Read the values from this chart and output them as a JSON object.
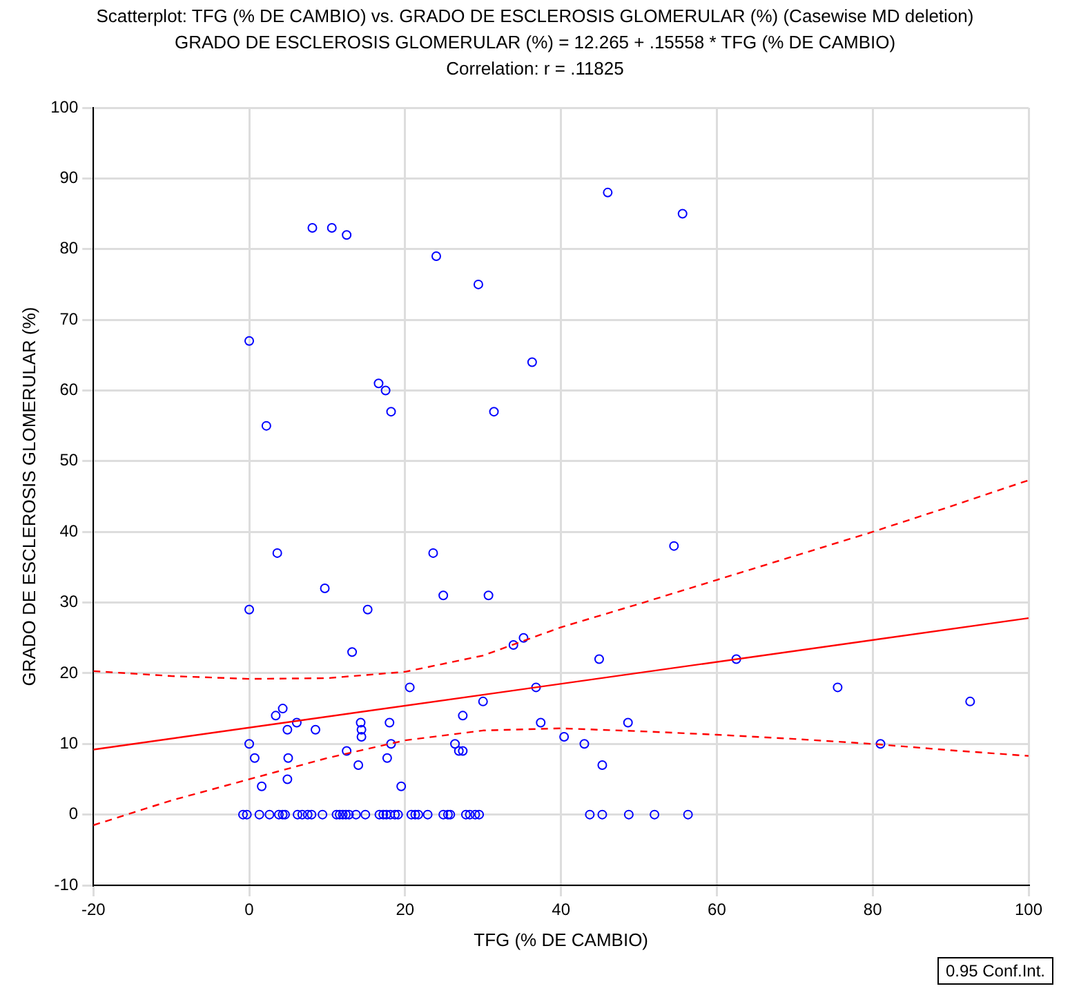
{
  "chart_data": {
    "type": "scatter",
    "title": "Scatterplot: TFG (% DE CAMBIO) vs. GRADO DE ESCLEROSIS GLOMERULAR (%) (Casewise MD deletion)",
    "subtitle": "GRADO DE ESCLEROSIS GLOMERULAR (%) = 12.265 + .15558 * TFG (% DE CAMBIO)",
    "annotations": [
      "Correlation: r = .11825",
      "0.95 Conf.Int."
    ],
    "xlabel": "TFG (% DE CAMBIO)",
    "ylabel": "GRADO DE ESCLEROSIS GLOMERULAR (%)",
    "xlim": [
      -20,
      100
    ],
    "ylim": [
      -10,
      100
    ],
    "xticks": [
      -20,
      0,
      20,
      40,
      60,
      80,
      100
    ],
    "yticks": [
      -10,
      0,
      10,
      20,
      30,
      40,
      50,
      60,
      70,
      80,
      90,
      100
    ],
    "grid": true,
    "legend": false,
    "series": [
      {
        "type": "scatter",
        "marker": "circle",
        "color": "#0000ff",
        "x": [
          0,
          8.1,
          10.6,
          12.5,
          24,
          29.4,
          46,
          55.6,
          36.3,
          31.4,
          16.6,
          17.5,
          18.2,
          2.2,
          3.6,
          9.7,
          0,
          15.2,
          13.2,
          23.6,
          24.9,
          30.7,
          54.5,
          33.9,
          35.2,
          44.9,
          62.5,
          36.8,
          37.4,
          75.5,
          92.5,
          81,
          20.6,
          30,
          0,
          0.7,
          1.6,
          3.4,
          4.3,
          4.9,
          6.1,
          5,
          4.9,
          8.5,
          12.5,
          14,
          14.3,
          14.4,
          14.4,
          18,
          18.2,
          17.7,
          19.5,
          27.4,
          26.4,
          26.9,
          27.4,
          40.4,
          43,
          45.3,
          48.6,
          -0.8,
          -0.3,
          1.3,
          2.6,
          3.8,
          4.3,
          4.6,
          6.2,
          6.8,
          7.5,
          8,
          9.4,
          11.2,
          11.6,
          12,
          12.4,
          12.8,
          13.7,
          14.9,
          16.7,
          17.2,
          17.6,
          18.1,
          18.7,
          19.1,
          20.8,
          21.3,
          21.7,
          22.9,
          24.9,
          25.5,
          25.8,
          27.8,
          28.3,
          29,
          29.5,
          43.7,
          45.3,
          48.7,
          52,
          56.3
        ],
        "values": [
          67,
          83,
          83,
          82,
          79,
          75,
          88,
          85,
          64,
          57,
          61,
          60,
          57,
          55,
          37,
          32,
          29,
          29,
          23,
          37,
          31,
          31,
          38,
          24,
          25,
          22,
          22,
          18,
          13,
          18,
          16,
          10,
          18,
          16,
          10,
          8,
          4,
          14,
          15,
          12,
          13,
          8,
          5,
          12,
          9,
          7,
          13,
          12,
          11,
          13,
          10,
          8,
          4,
          14,
          10,
          9,
          9,
          11,
          10,
          7,
          13,
          0,
          0,
          0,
          0,
          0,
          0,
          0,
          0,
          0,
          0,
          0,
          0,
          0,
          0,
          0,
          0,
          0,
          0,
          0,
          0,
          0,
          0,
          0,
          0,
          0,
          0,
          0,
          0,
          0,
          0,
          0,
          0,
          0,
          0,
          0,
          0,
          0,
          0,
          0,
          0,
          0
        ]
      },
      {
        "type": "line",
        "color": "#ff0000",
        "line_style": "solid",
        "marker": "none",
        "x": [
          -20,
          100
        ],
        "values": [
          9.2,
          27.8
        ]
      },
      {
        "type": "line",
        "color": "#ff0000",
        "line_style": "dashed",
        "marker": "none",
        "x": [
          -20,
          -10,
          0,
          10,
          20,
          30,
          40,
          50,
          60,
          70,
          80,
          90,
          100
        ],
        "values": [
          20.3,
          19.6,
          19.2,
          19.3,
          20.2,
          22.5,
          26.5,
          29.8,
          33.2,
          36.6,
          40,
          43.6,
          47.3
        ]
      },
      {
        "type": "line",
        "color": "#ff0000",
        "line_style": "dashed",
        "marker": "none",
        "x": [
          -20,
          -10,
          0,
          10,
          20,
          30,
          40,
          50,
          60,
          70,
          80,
          90,
          100
        ],
        "values": [
          -1.5,
          2,
          5,
          8,
          10.5,
          11.9,
          12.2,
          11.8,
          11.3,
          10.7,
          10,
          9.1,
          8.3
        ]
      }
    ]
  }
}
